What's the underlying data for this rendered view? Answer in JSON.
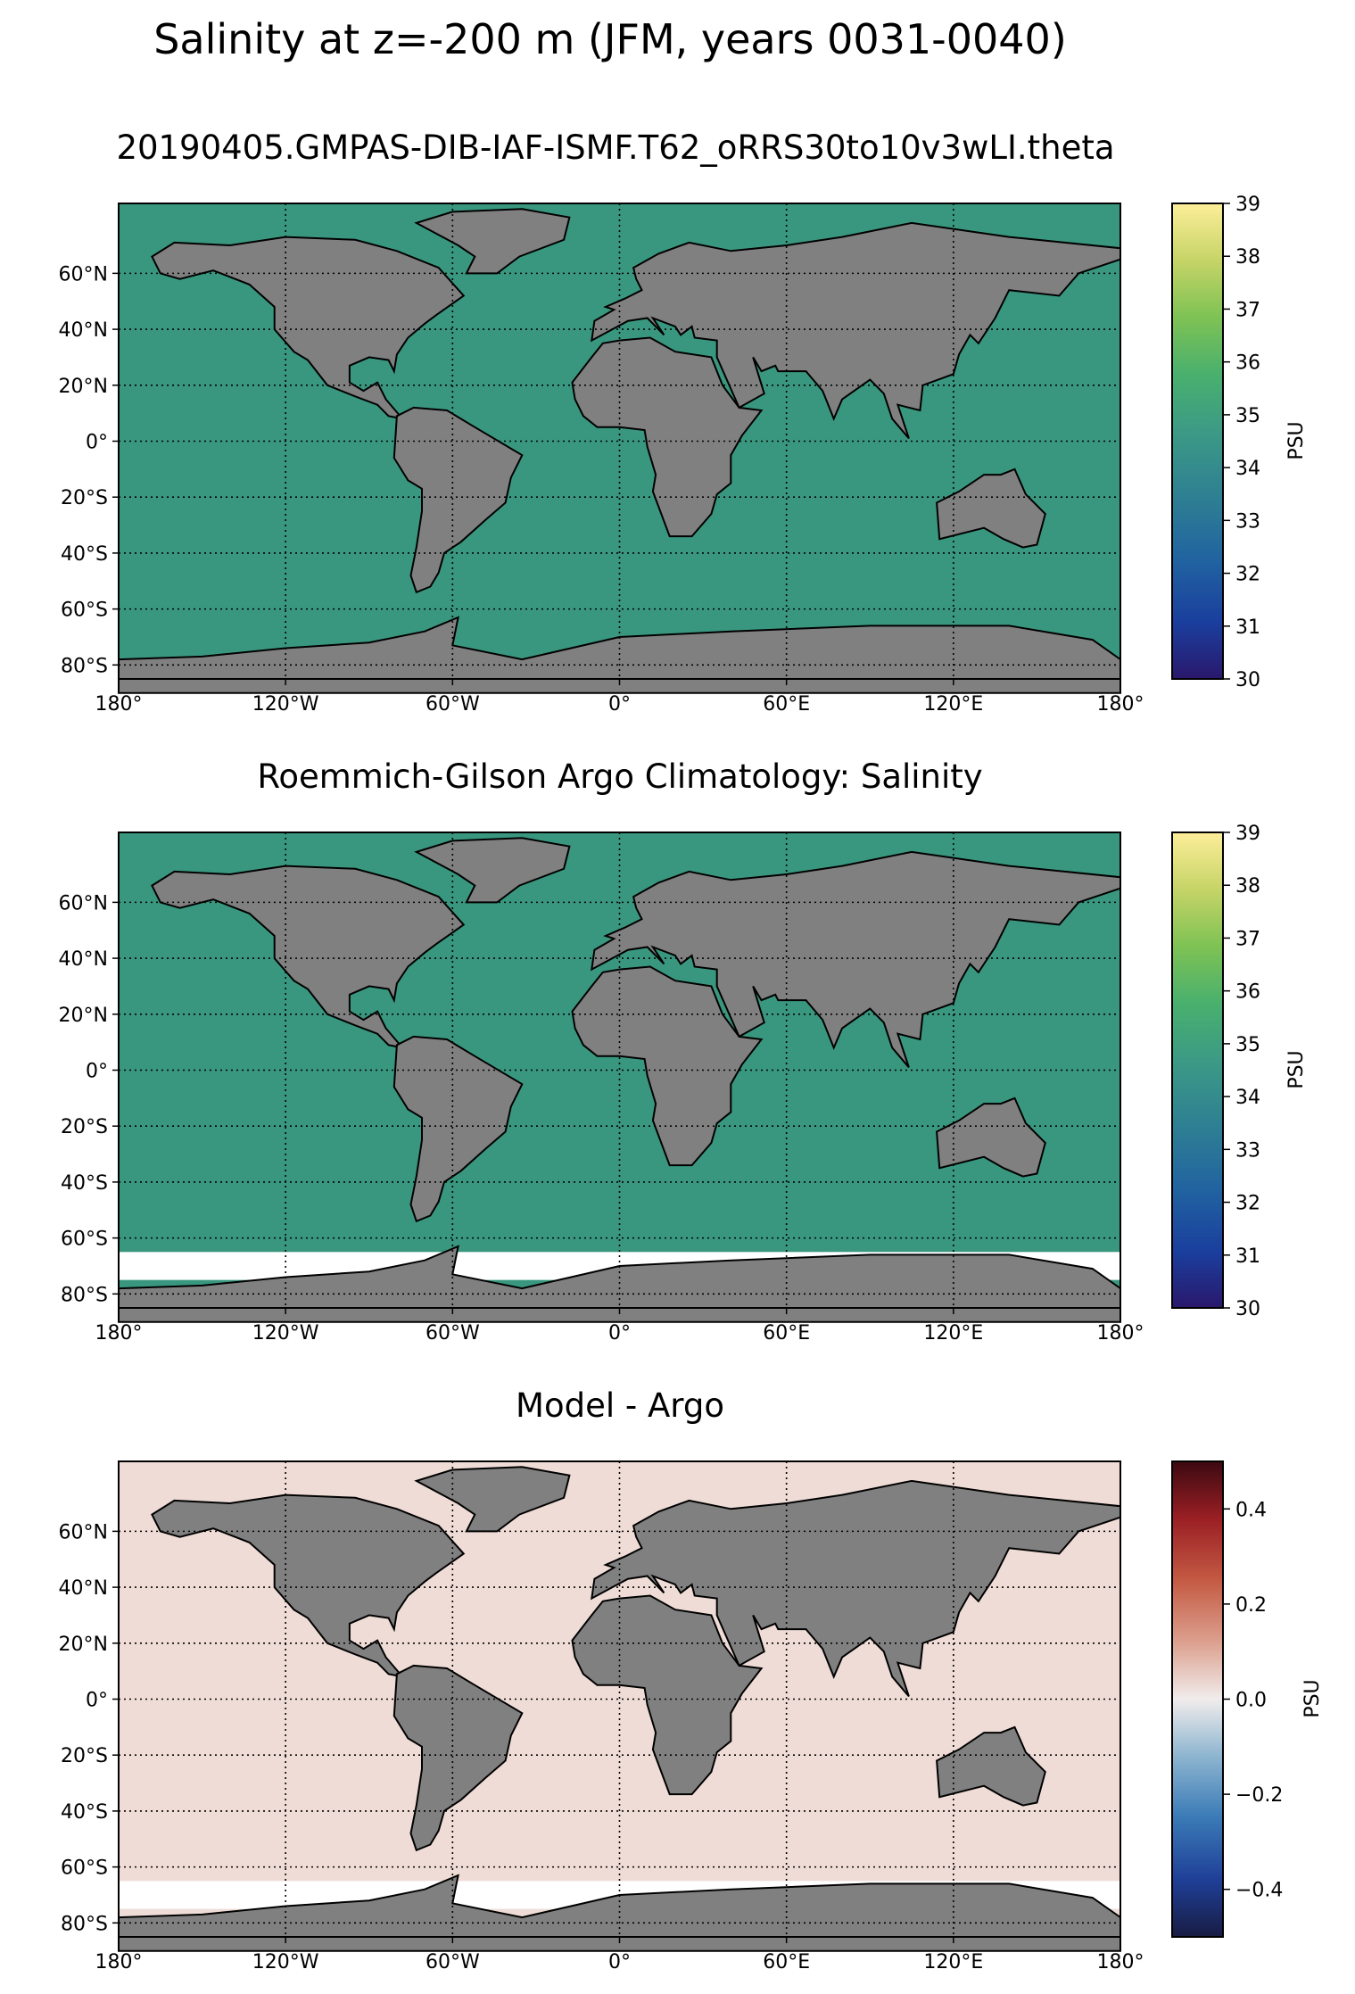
{
  "suptitle": "Salinity at z=-200 m (JFM, years 0031-0040)",
  "lon_ticks": [
    "180°",
    "120°W",
    "60°W",
    "0°",
    "60°E",
    "120°E",
    "180°"
  ],
  "lat_ticks": [
    "60°N",
    "40°N",
    "20°N",
    "0°",
    "20°S",
    "40°S",
    "60°S",
    "80°S"
  ],
  "colors": {
    "land": "#808080",
    "missing": "#ffffff",
    "grid": "#000000"
  },
  "chart_data": [
    {
      "type": "heatmap",
      "title": "20190405.GMPAS-DIB-IAF-ISMF.T62_oRRS30to10v3wLI.theta",
      "xlabel": "",
      "ylabel": "",
      "xlim": [
        -180,
        180
      ],
      "ylim": [
        -85,
        85
      ],
      "colorbar": {
        "label": "PSU",
        "range": [
          30,
          39
        ],
        "ticks": [
          "30",
          "31",
          "32",
          "33",
          "34",
          "35",
          "36",
          "37",
          "38",
          "39"
        ],
        "colormap": "haline"
      },
      "fields": {
        "antarctic_missing": false,
        "sea_bias": 0
      }
    },
    {
      "type": "heatmap",
      "title": "Roemmich-Gilson Argo Climatology: Salinity",
      "xlabel": "",
      "ylabel": "",
      "xlim": [
        -180,
        180
      ],
      "ylim": [
        -85,
        85
      ],
      "colorbar": {
        "label": "PSU",
        "range": [
          30,
          39
        ],
        "ticks": [
          "30",
          "31",
          "32",
          "33",
          "34",
          "35",
          "36",
          "37",
          "38",
          "39"
        ],
        "colormap": "haline"
      },
      "fields": {
        "antarctic_missing": true,
        "sea_bias": 0
      }
    },
    {
      "type": "heatmap",
      "title": "Model - Argo",
      "xlabel": "",
      "ylabel": "",
      "xlim": [
        -180,
        180
      ],
      "ylim": [
        -85,
        85
      ],
      "colorbar": {
        "label": "PSU",
        "range": [
          -0.5,
          0.5
        ],
        "ticks": [
          "−0.4",
          "−0.2",
          "0.0",
          "0.2",
          "0.4"
        ],
        "tick_values": [
          -0.4,
          -0.2,
          0.0,
          0.2,
          0.4
        ],
        "colormap": "balance"
      },
      "fields": {
        "antarctic_missing": true,
        "sea_bias": 0
      }
    }
  ]
}
